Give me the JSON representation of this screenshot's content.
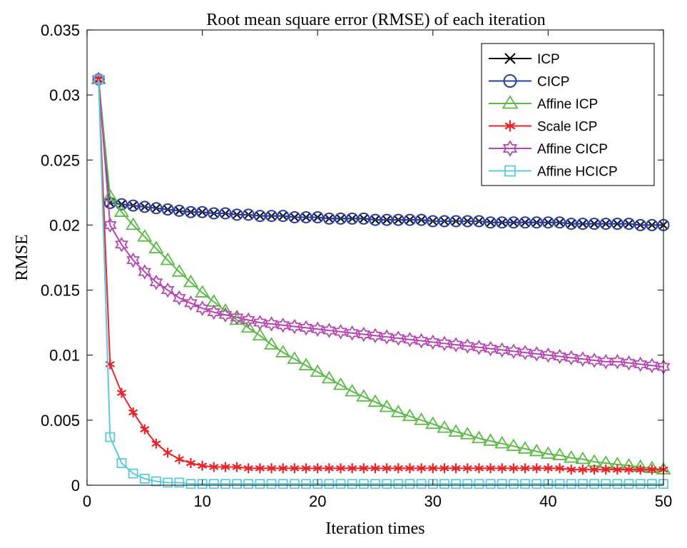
{
  "chart_data": {
    "type": "line",
    "title": "Root mean square error (RMSE) of each iteration",
    "xlabel": "Iteration times",
    "ylabel": "RMSE",
    "xlim": [
      0,
      50
    ],
    "ylim": [
      0,
      0.035
    ],
    "x_ticks": [
      0,
      10,
      20,
      30,
      40,
      50
    ],
    "x_tick_labels": [
      "0",
      "10",
      "20",
      "30",
      "40",
      "50"
    ],
    "y_ticks": [
      0,
      0.005,
      0.01,
      0.015,
      0.02,
      0.025,
      0.03,
      0.035
    ],
    "y_tick_labels": [
      "0",
      "0.005",
      "0.01",
      "0.015",
      "0.02",
      "0.025",
      "0.03",
      "0.035"
    ],
    "grid": false,
    "legend_position": "top-right",
    "x": [
      1,
      2,
      3,
      4,
      5,
      6,
      7,
      8,
      9,
      10,
      11,
      12,
      13,
      14,
      15,
      16,
      17,
      18,
      19,
      20,
      21,
      22,
      23,
      24,
      25,
      26,
      27,
      28,
      29,
      30,
      31,
      32,
      33,
      34,
      35,
      36,
      37,
      38,
      39,
      40,
      41,
      42,
      43,
      44,
      45,
      46,
      47,
      48,
      49,
      50
    ],
    "series": [
      {
        "name": "ICP",
        "color": "#000000",
        "marker": "x",
        "values": [
          0.0312,
          0.0217,
          0.0216,
          0.0215,
          0.0214,
          0.0213,
          0.0212,
          0.0211,
          0.021,
          0.021,
          0.0209,
          0.0209,
          0.0208,
          0.0208,
          0.0207,
          0.0207,
          0.0207,
          0.0206,
          0.0206,
          0.0206,
          0.0205,
          0.0205,
          0.0205,
          0.0205,
          0.0204,
          0.0204,
          0.0204,
          0.0204,
          0.0204,
          0.0203,
          0.0203,
          0.0203,
          0.0203,
          0.0203,
          0.0202,
          0.0202,
          0.0202,
          0.0202,
          0.0202,
          0.0202,
          0.0202,
          0.0201,
          0.0201,
          0.0201,
          0.0201,
          0.0201,
          0.0201,
          0.02,
          0.02,
          0.02
        ]
      },
      {
        "name": "CICP",
        "color": "#2B3E9E",
        "marker": "circle",
        "values": [
          0.0312,
          0.0217,
          0.0216,
          0.0215,
          0.0214,
          0.0213,
          0.0212,
          0.0211,
          0.021,
          0.021,
          0.0209,
          0.0209,
          0.0208,
          0.0208,
          0.0207,
          0.0207,
          0.0207,
          0.0206,
          0.0206,
          0.0206,
          0.0205,
          0.0205,
          0.0205,
          0.0205,
          0.0204,
          0.0204,
          0.0204,
          0.0204,
          0.0204,
          0.0203,
          0.0203,
          0.0203,
          0.0203,
          0.0203,
          0.0202,
          0.0202,
          0.0202,
          0.0202,
          0.0202,
          0.0202,
          0.0202,
          0.0201,
          0.0201,
          0.0201,
          0.0201,
          0.0201,
          0.0201,
          0.02,
          0.02,
          0.02
        ]
      },
      {
        "name": "Affine ICP",
        "color": "#5DB84A",
        "marker": "triangle",
        "values": [
          0.0312,
          0.0222,
          0.021,
          0.02,
          0.0191,
          0.0182,
          0.0173,
          0.0164,
          0.0156,
          0.0148,
          0.0141,
          0.0134,
          0.0127,
          0.0121,
          0.0115,
          0.0108,
          0.0102,
          0.0097,
          0.0092,
          0.0087,
          0.0082,
          0.0077,
          0.0072,
          0.0068,
          0.0064,
          0.006,
          0.0056,
          0.0053,
          0.005,
          0.0047,
          0.0044,
          0.0041,
          0.0039,
          0.0036,
          0.0034,
          0.0032,
          0.003,
          0.0028,
          0.0026,
          0.0024,
          0.0023,
          0.0021,
          0.002,
          0.0018,
          0.0017,
          0.0016,
          0.0015,
          0.0014,
          0.0013,
          0.0012
        ]
      },
      {
        "name": "Scale ICP",
        "color": "#E8232A",
        "marker": "star",
        "values": [
          0.0312,
          0.0093,
          0.0071,
          0.0056,
          0.0043,
          0.0032,
          0.0025,
          0.002,
          0.0017,
          0.0015,
          0.0014,
          0.0014,
          0.0014,
          0.0013,
          0.0013,
          0.0013,
          0.0013,
          0.0013,
          0.0013,
          0.0013,
          0.0013,
          0.0013,
          0.0013,
          0.0013,
          0.0013,
          0.0013,
          0.0013,
          0.0013,
          0.0013,
          0.0013,
          0.0013,
          0.0013,
          0.0013,
          0.0013,
          0.0013,
          0.0013,
          0.0013,
          0.0013,
          0.0013,
          0.0013,
          0.0013,
          0.0012,
          0.0012,
          0.0012,
          0.0012,
          0.0012,
          0.0012,
          0.0012,
          0.0012,
          0.0012
        ]
      },
      {
        "name": "Affine CICP",
        "color": "#B446B0",
        "marker": "hexagram",
        "values": [
          0.0312,
          0.02,
          0.0185,
          0.0173,
          0.0164,
          0.0156,
          0.015,
          0.0144,
          0.014,
          0.0136,
          0.0133,
          0.0131,
          0.0129,
          0.0127,
          0.0125,
          0.0124,
          0.0123,
          0.0122,
          0.0121,
          0.012,
          0.0119,
          0.0118,
          0.0117,
          0.0116,
          0.0115,
          0.0114,
          0.0113,
          0.0112,
          0.0111,
          0.011,
          0.0109,
          0.0108,
          0.0107,
          0.0106,
          0.0105,
          0.0104,
          0.0103,
          0.0102,
          0.0101,
          0.01,
          0.0099,
          0.0098,
          0.0097,
          0.0096,
          0.0095,
          0.0095,
          0.0094,
          0.0093,
          0.0092,
          0.0091
        ]
      },
      {
        "name": "Affine HCICP",
        "color": "#5FC8D8",
        "marker": "square",
        "values": [
          0.0312,
          0.0037,
          0.0017,
          0.0009,
          0.0005,
          0.0003,
          0.0002,
          0.0002,
          0.0001,
          0.0001,
          0.0001,
          0.0001,
          0.0001,
          0.0001,
          0.0001,
          0.0001,
          0.0001,
          0.0001,
          0.0001,
          0.0001,
          0.0001,
          0.0001,
          0.0001,
          0.0001,
          0.0001,
          0.0001,
          0.0001,
          0.0001,
          0.0001,
          0.0001,
          0.0001,
          0.0001,
          0.0001,
          0.0001,
          0.0001,
          0.0001,
          0.0001,
          0.0001,
          0.0001,
          0.0001,
          0.0001,
          0.0001,
          0.0001,
          0.0001,
          0.0001,
          0.0001,
          0.0001,
          0.0001,
          0.0001,
          0.0001
        ]
      }
    ]
  }
}
